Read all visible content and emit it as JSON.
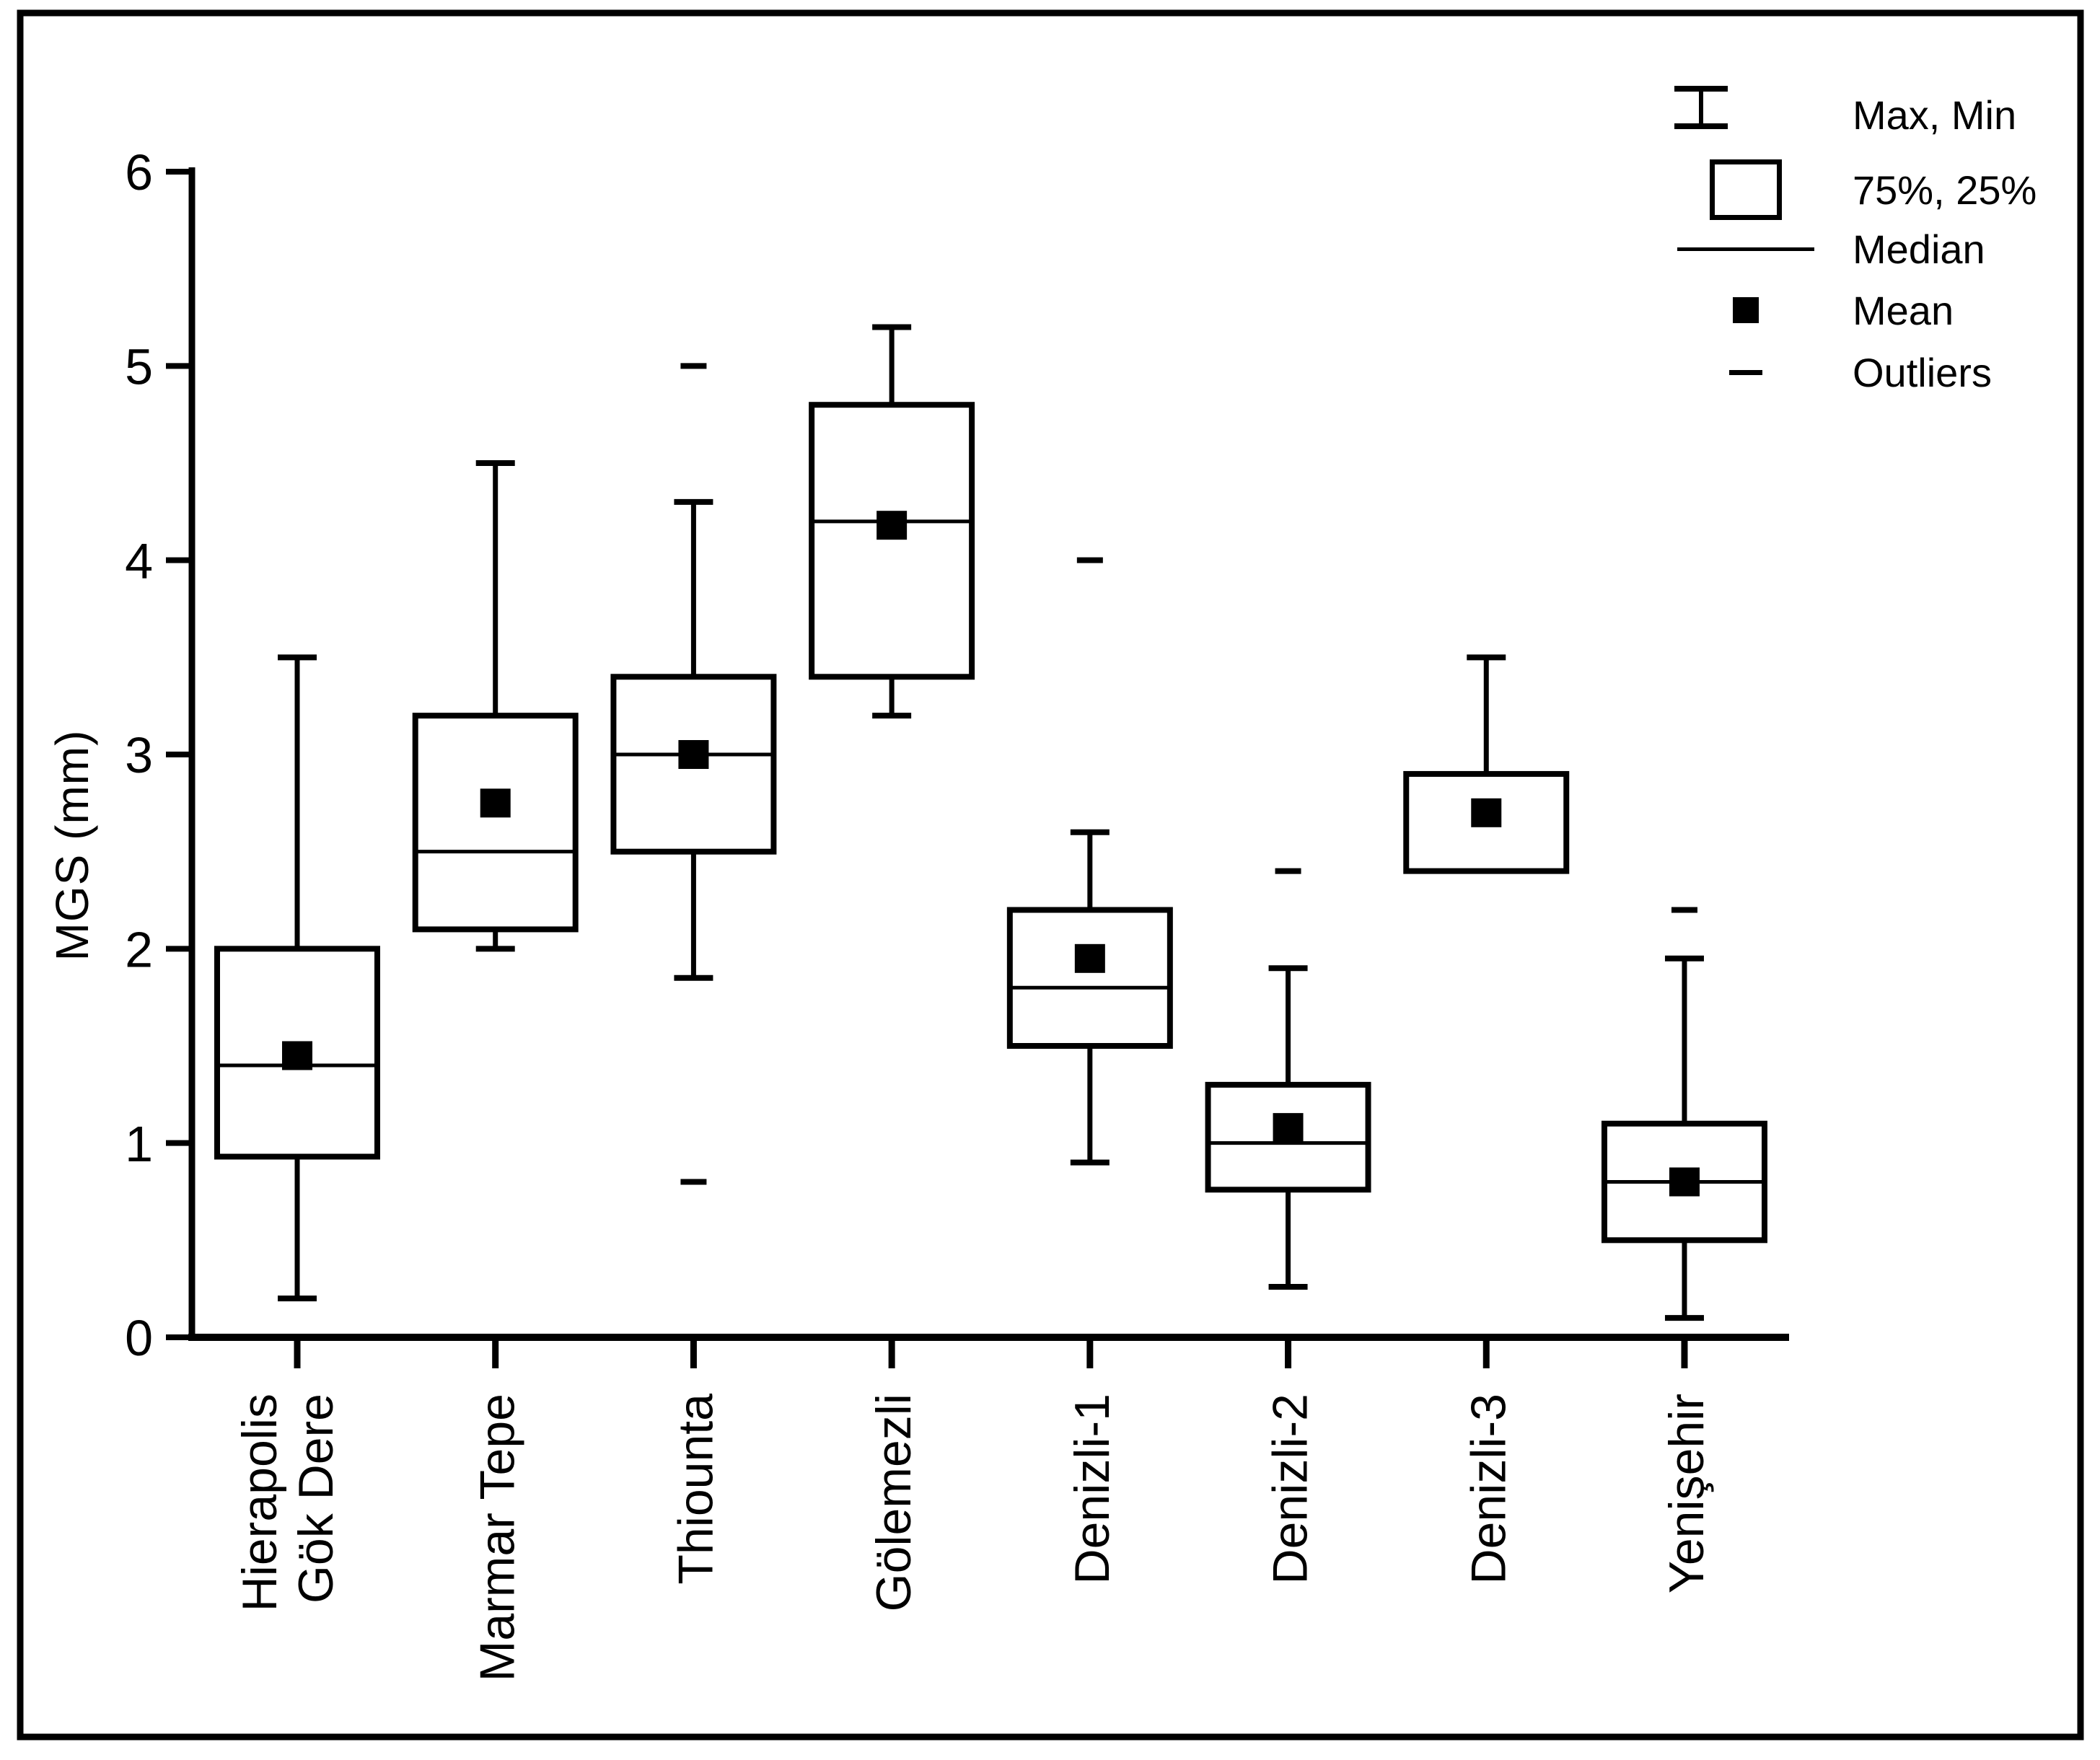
{
  "figure": {
    "background": "#ffffff",
    "line_color": "#000000"
  },
  "legend": {
    "position": "top-right",
    "items": [
      {
        "icon": "max-min-whisker",
        "label": "Max, Min"
      },
      {
        "icon": "box-75-25",
        "label": "75%, 25%"
      },
      {
        "icon": "median-line",
        "label": "Median"
      },
      {
        "icon": "mean-square",
        "label": "Mean"
      },
      {
        "icon": "outlier-dash",
        "label": "Outliers"
      }
    ]
  },
  "chart_data": {
    "type": "boxplot",
    "title": "",
    "xlabel": "",
    "ylabel": "MGS (mm)",
    "ylim": [
      0,
      6
    ],
    "yticks": [
      0,
      1,
      2,
      3,
      4,
      5,
      6
    ],
    "grid": false,
    "legend_position": "top-right",
    "categories": [
      "Hierapolis Gök Dere",
      "Marmar Tepe",
      "Thiounta",
      "Gölemezli",
      "Denizli-1",
      "Denizli-2",
      "Denizli-3",
      "Yenişehir"
    ],
    "series": [
      {
        "category": "Hierapolis Gök Dere",
        "label_lines": [
          "Hierapolis",
          "Gök Dere"
        ],
        "min": 0.2,
        "q1": 0.93,
        "median": 1.4,
        "mean": 1.45,
        "q3": 2.0,
        "max": 3.5,
        "outliers": []
      },
      {
        "category": "Marmar Tepe",
        "label_lines": [
          "Marmar Tepe"
        ],
        "min": 2.0,
        "q1": 2.1,
        "median": 2.5,
        "mean": 2.75,
        "q3": 3.2,
        "max": 4.5,
        "outliers": []
      },
      {
        "category": "Thiounta",
        "label_lines": [
          "Thiounta"
        ],
        "min": 1.85,
        "q1": 2.5,
        "median": 3.0,
        "mean": 3.0,
        "q3": 3.4,
        "max": 4.3,
        "outliers": [
          5.0,
          0.8
        ]
      },
      {
        "category": "Gölemezli",
        "label_lines": [
          "Gölemezli"
        ],
        "min": 3.2,
        "q1": 3.4,
        "median": 4.2,
        "mean": 4.18,
        "q3": 4.8,
        "max": 5.2,
        "outliers": []
      },
      {
        "category": "Denizli-1",
        "label_lines": [
          "Denizli-1"
        ],
        "min": 0.9,
        "q1": 1.5,
        "median": 1.8,
        "mean": 1.95,
        "q3": 2.2,
        "max": 2.6,
        "outliers": [
          4.0
        ]
      },
      {
        "category": "Denizli-2",
        "label_lines": [
          "Denizli-2"
        ],
        "min": 0.26,
        "q1": 0.76,
        "median": 1.0,
        "mean": 1.08,
        "q3": 1.3,
        "max": 1.9,
        "outliers": [
          2.4
        ]
      },
      {
        "category": "Denizli-3",
        "label_lines": [
          "Denizli-3"
        ],
        "min": null,
        "q1": 2.4,
        "median": null,
        "mean": 2.7,
        "q3": 2.9,
        "max": 3.5,
        "outliers": []
      },
      {
        "category": "Yenişehir",
        "label_lines": [
          "Yenişehir"
        ],
        "min": 0.1,
        "q1": 0.5,
        "median": 0.8,
        "mean": 0.8,
        "q3": 1.1,
        "max": 1.95,
        "outliers": [
          2.2
        ]
      }
    ]
  }
}
